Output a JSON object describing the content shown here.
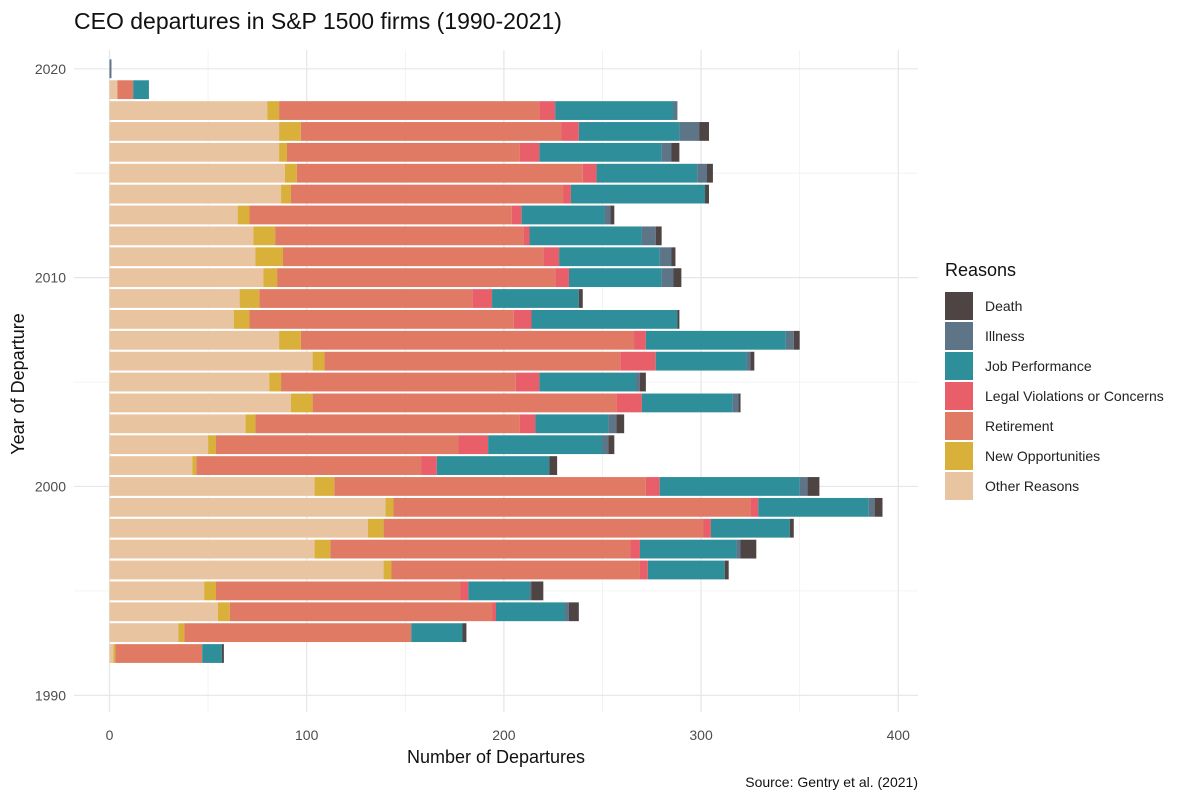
{
  "chart_data": {
    "type": "bar",
    "orientation": "horizontal",
    "stacked": true,
    "title": "CEO departures in S&P 1500 firms (1990-2021)",
    "xlabel": "Number of Departures",
    "ylabel": "Year of Departure",
    "caption": "Source: Gentry et al. (2021)",
    "legend_title": "Reasons",
    "legend_position": "right",
    "grid": true,
    "xlim": [
      -18,
      410
    ],
    "ylim": [
      1989.2,
      2020.9
    ],
    "x_ticks": [
      0,
      100,
      200,
      300,
      400
    ],
    "y_ticks": [
      1990,
      2000,
      2010,
      2020
    ],
    "years": [
      1992,
      1993,
      1994,
      1995,
      1996,
      1997,
      1998,
      1999,
      2000,
      2001,
      2002,
      2003,
      2004,
      2005,
      2006,
      2007,
      2008,
      2009,
      2010,
      2011,
      2012,
      2013,
      2014,
      2015,
      2016,
      2017,
      2018,
      2019,
      2020
    ],
    "series": [
      {
        "name": "Other Reasons",
        "color": "#E8C4A0",
        "values": [
          2,
          35,
          55,
          48,
          139,
          104,
          131,
          140,
          104,
          42,
          50,
          69,
          92,
          81,
          103,
          86,
          63,
          66,
          78,
          74,
          73,
          65,
          87,
          89,
          86,
          86,
          80,
          4,
          0
        ]
      },
      {
        "name": "New Opportunities",
        "color": "#D8B03A",
        "values": [
          1,
          3,
          6,
          6,
          4,
          8,
          8,
          4,
          10,
          2,
          4,
          5,
          11,
          6,
          6,
          11,
          8,
          10,
          7,
          14,
          11,
          6,
          5,
          6,
          4,
          11,
          6,
          0,
          0
        ]
      },
      {
        "name": "Retirement",
        "color": "#E07A65",
        "values": [
          44,
          115,
          133,
          124,
          126,
          152,
          162,
          181,
          158,
          114,
          123,
          134,
          154,
          119,
          150,
          169,
          134,
          108,
          141,
          132,
          126,
          133,
          138,
          145,
          118,
          132,
          132,
          8,
          0
        ]
      },
      {
        "name": "Legal Violations or Concerns",
        "color": "#E85F6A",
        "values": [
          0,
          0,
          2,
          4,
          4,
          5,
          4,
          4,
          7,
          8,
          15,
          8,
          13,
          12,
          18,
          6,
          9,
          10,
          7,
          8,
          3,
          5,
          4,
          7,
          10,
          9,
          8,
          0,
          0
        ]
      },
      {
        "name": "Job Performance",
        "color": "#2E8E9A",
        "values": [
          10,
          26,
          35,
          31,
          39,
          49,
          40,
          56,
          71,
          57,
          58,
          37,
          46,
          49,
          46,
          71,
          74,
          44,
          47,
          51,
          57,
          42,
          68,
          51,
          62,
          51,
          60,
          8,
          0
        ]
      },
      {
        "name": "Illness",
        "color": "#5E7588",
        "values": [
          0,
          0,
          2,
          1,
          0,
          2,
          0,
          3,
          4,
          0,
          3,
          4,
          3,
          2,
          2,
          4,
          0,
          0,
          6,
          6,
          7,
          3,
          0,
          5,
          5,
          10,
          2,
          0,
          1
        ]
      },
      {
        "name": "Death",
        "color": "#4E4444",
        "values": [
          1,
          2,
          5,
          6,
          2,
          8,
          2,
          4,
          6,
          4,
          3,
          4,
          1,
          3,
          2,
          3,
          1,
          2,
          4,
          2,
          3,
          2,
          2,
          3,
          4,
          5,
          0,
          0,
          0
        ]
      }
    ]
  }
}
